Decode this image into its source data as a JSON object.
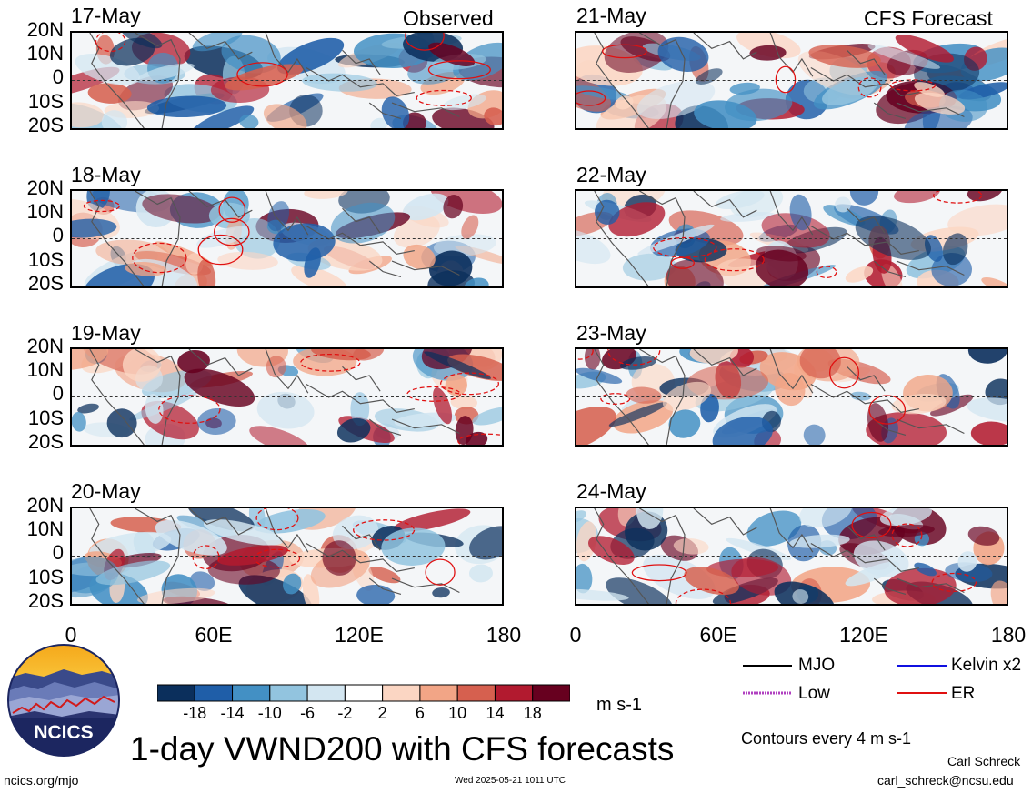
{
  "header": {
    "left_label": "Observed",
    "right_label": "CFS Forecast"
  },
  "panels": {
    "observed": [
      {
        "date": "17-May"
      },
      {
        "date": "18-May"
      },
      {
        "date": "19-May"
      },
      {
        "date": "20-May"
      }
    ],
    "forecast": [
      {
        "date": "21-May"
      },
      {
        "date": "22-May"
      },
      {
        "date": "23-May"
      },
      {
        "date": "24-May"
      }
    ]
  },
  "axes": {
    "lat_labels": [
      "20N",
      "10N",
      "0",
      "10S",
      "20S"
    ],
    "lon_labels": [
      "0",
      "60E",
      "120E",
      "180"
    ]
  },
  "colorbar": {
    "labels": [
      "-18",
      "-14",
      "-10",
      "-6",
      "-2",
      "2",
      "6",
      "10",
      "14",
      "18"
    ],
    "colors": [
      "#0b2f5c",
      "#1f5ea8",
      "#4390c4",
      "#92c4df",
      "#d3e6f1",
      "#ffffff",
      "#fbd6c3",
      "#f2a586",
      "#d6604f",
      "#b21a2f",
      "#67001f"
    ],
    "units": "m s-1"
  },
  "legend": {
    "items": [
      {
        "label": "MJO",
        "color": "#000000",
        "style": "solid"
      },
      {
        "label": "Kelvin x2",
        "color": "#1010e0",
        "style": "solid"
      },
      {
        "label": "Low",
        "color": "#b040c0",
        "style": "solid"
      },
      {
        "label": "ER",
        "color": "#e01010",
        "style": "solid"
      }
    ],
    "contours_note": "Contours every 4 m s-1"
  },
  "footer": {
    "title": "1-day VWND200 with CFS forecasts",
    "logo_text": "NCICS",
    "left_url": "ncics.org/mjo",
    "timestamp": "Wed 2025-05-21 1011 UTC",
    "author": "Carl Schreck",
    "email": "carl_schreck@ncsu.edu"
  }
}
